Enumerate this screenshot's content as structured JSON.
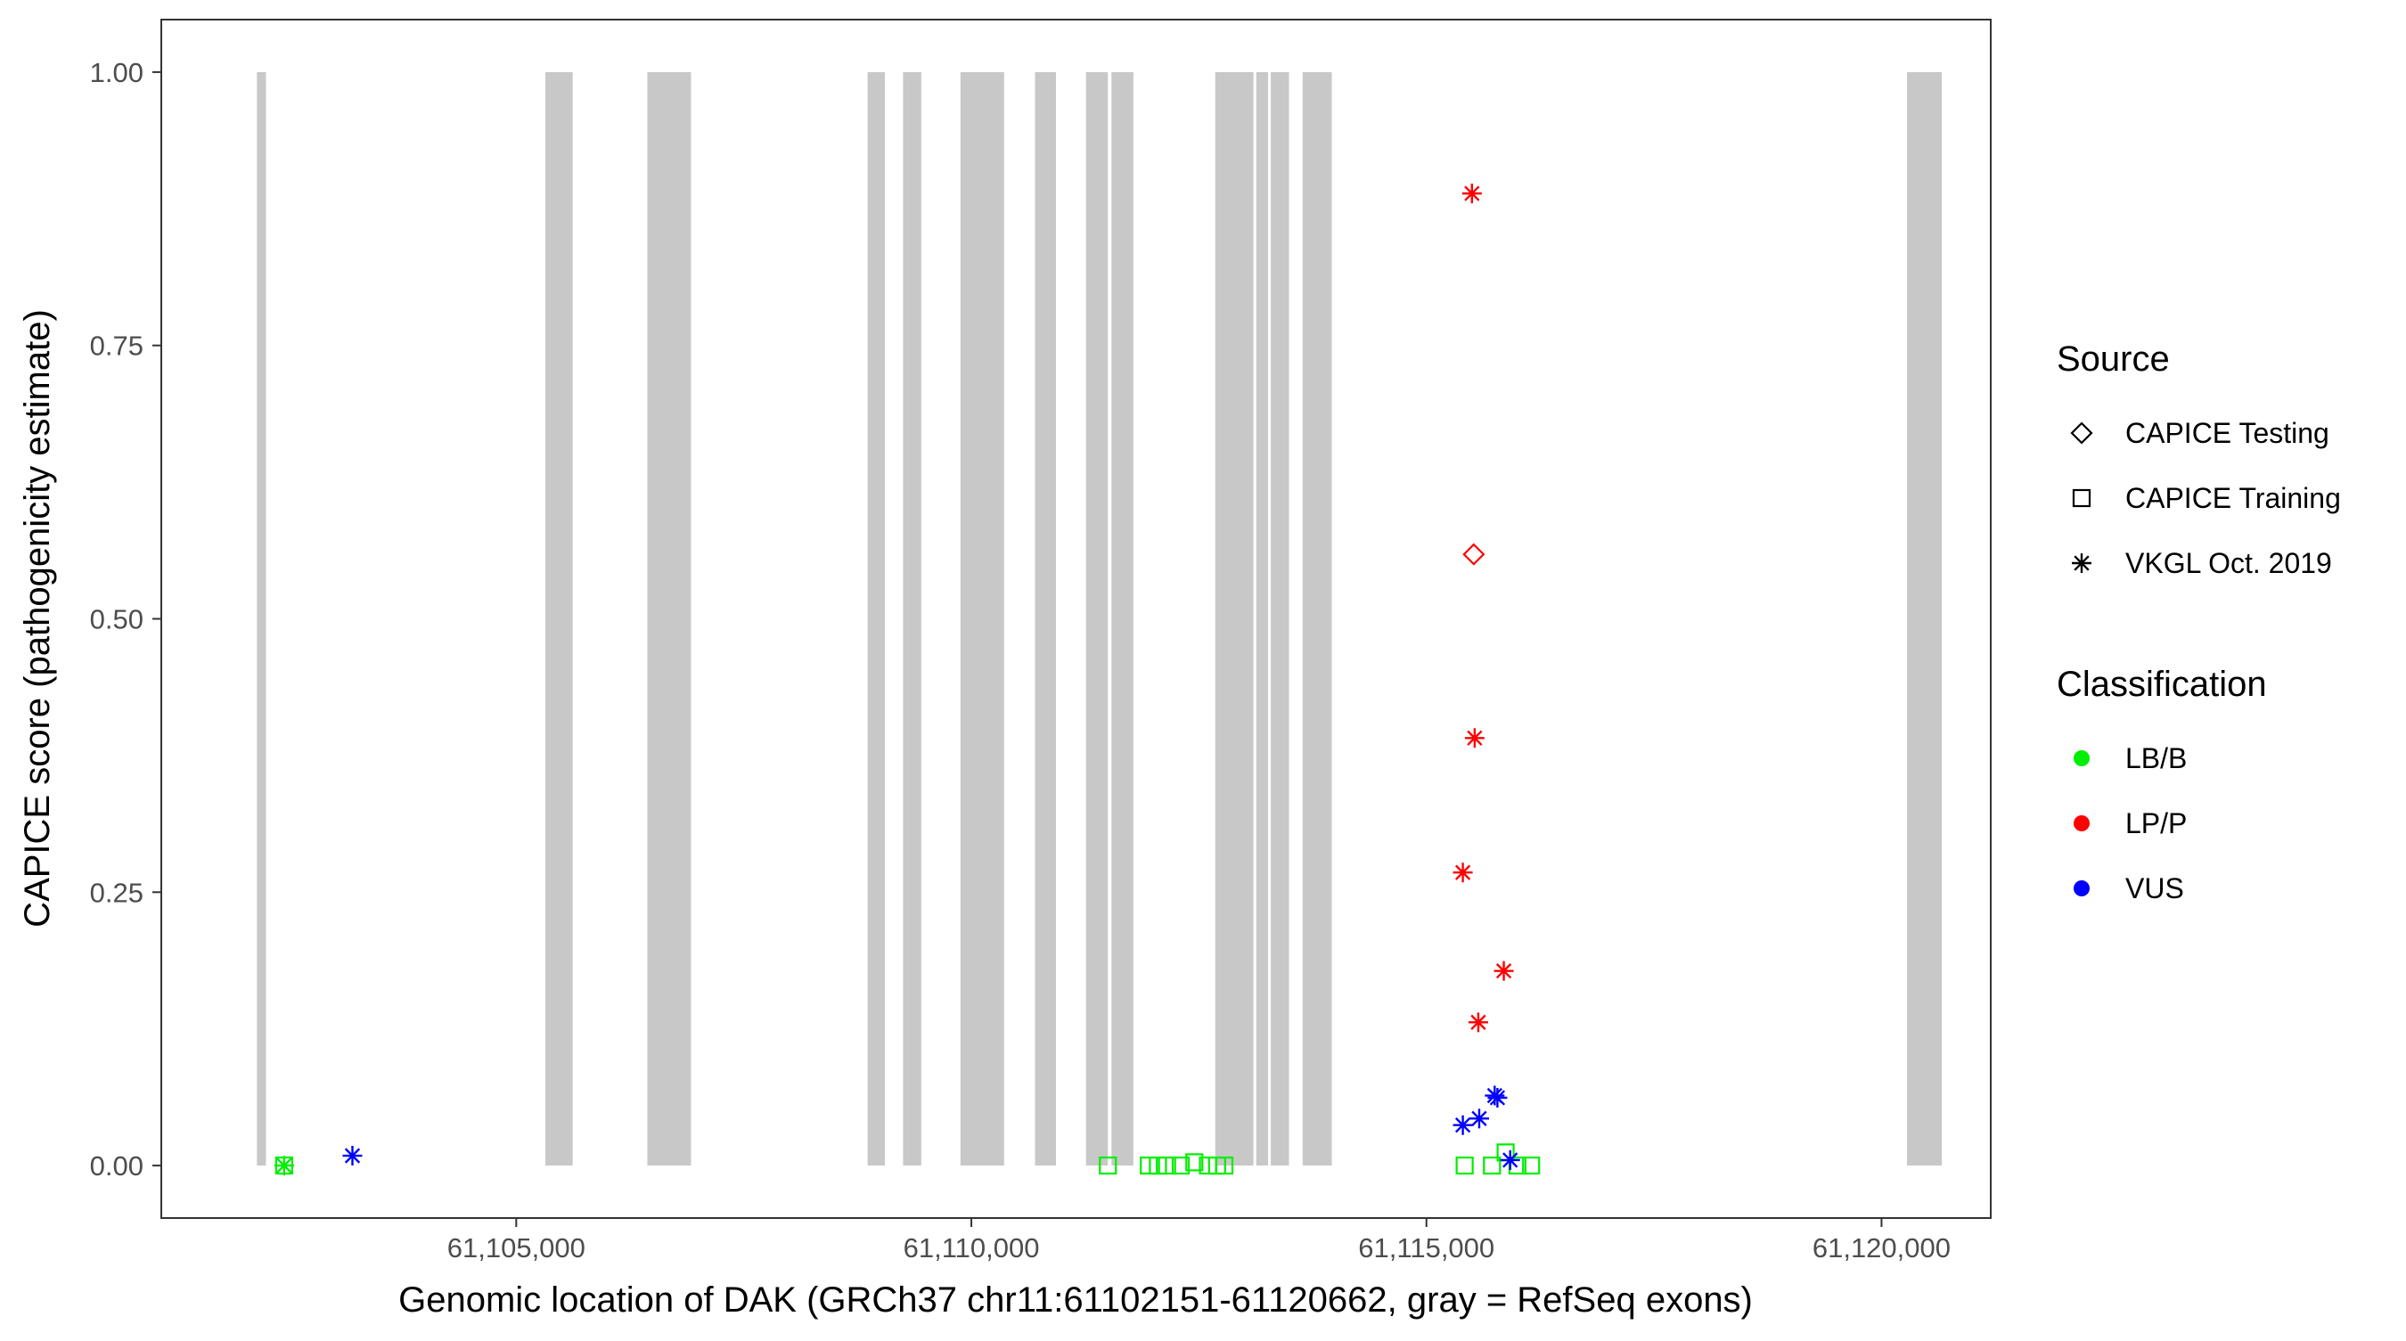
{
  "chart_data": {
    "type": "scatter",
    "title": "",
    "xlabel": "Genomic location of DAK (GRCh37 chr11:61102151-61120662, gray = RefSeq exons)",
    "ylabel": "CAPICE score (pathogenicity estimate)",
    "xlim": [
      61101100,
      61121200
    ],
    "ylim": [
      -0.048,
      1.048
    ],
    "x_ticks": [
      61105000,
      61110000,
      61115000,
      61120000
    ],
    "x_tick_labels": [
      "61,105,000",
      "61,110,000",
      "61,115,000",
      "61,120,000"
    ],
    "y_ticks": [
      0,
      0.25,
      0.5,
      0.75,
      1
    ],
    "y_tick_labels": [
      "0.00",
      "0.25",
      "0.50",
      "0.75",
      "1.00"
    ],
    "grid": false,
    "exons": [
      {
        "start": 61102151,
        "end": 61102250
      },
      {
        "start": 61105320,
        "end": 61105620
      },
      {
        "start": 61106440,
        "end": 61106920
      },
      {
        "start": 61108860,
        "end": 61109050
      },
      {
        "start": 61109250,
        "end": 61109450
      },
      {
        "start": 61109880,
        "end": 61110360
      },
      {
        "start": 61110700,
        "end": 61110930
      },
      {
        "start": 61111260,
        "end": 61111500
      },
      {
        "start": 61111540,
        "end": 61111780
      },
      {
        "start": 61112680,
        "end": 61113100
      },
      {
        "start": 61113130,
        "end": 61113260
      },
      {
        "start": 61113290,
        "end": 61113490
      },
      {
        "start": 61113640,
        "end": 61113960
      },
      {
        "start": 61120280,
        "end": 61120662
      }
    ],
    "legends": {
      "source": {
        "title": "Source",
        "items": [
          {
            "label": "CAPICE Testing",
            "shape": "diamond"
          },
          {
            "label": "CAPICE Training",
            "shape": "square"
          },
          {
            "label": "VKGL Oct. 2019",
            "shape": "asterisk"
          }
        ]
      },
      "classification": {
        "title": "Classification",
        "items": [
          {
            "label": "LB/B",
            "color": "#00ee00"
          },
          {
            "label": "LP/P",
            "color": "#ff0000"
          },
          {
            "label": "VUS",
            "color": "#0000ff"
          }
        ]
      }
    },
    "points": [
      {
        "x": 61102450,
        "y": 0.0,
        "source": "CAPICE Training",
        "classification": "LB/B"
      },
      {
        "x": 61102450,
        "y": 0.0,
        "source": "VKGL Oct. 2019",
        "classification": "LB/B"
      },
      {
        "x": 61103200,
        "y": 0.009,
        "source": "VKGL Oct. 2019",
        "classification": "VUS"
      },
      {
        "x": 61111500,
        "y": 0.0,
        "source": "CAPICE Training",
        "classification": "LB/B"
      },
      {
        "x": 61111950,
        "y": 0.0,
        "source": "CAPICE Training",
        "classification": "LB/B"
      },
      {
        "x": 61112050,
        "y": 0.0,
        "source": "CAPICE Training",
        "classification": "LB/B"
      },
      {
        "x": 61112150,
        "y": 0.0,
        "source": "CAPICE Training",
        "classification": "LB/B"
      },
      {
        "x": 61112300,
        "y": 0.0,
        "source": "CAPICE Training",
        "classification": "LB/B"
      },
      {
        "x": 61112450,
        "y": 0.003,
        "source": "CAPICE Training",
        "classification": "LB/B"
      },
      {
        "x": 61112600,
        "y": 0.0,
        "source": "CAPICE Training",
        "classification": "LB/B"
      },
      {
        "x": 61112700,
        "y": 0.0,
        "source": "CAPICE Training",
        "classification": "LB/B"
      },
      {
        "x": 61112780,
        "y": 0.0,
        "source": "CAPICE Training",
        "classification": "LB/B"
      },
      {
        "x": 61115500,
        "y": 0.889,
        "source": "VKGL Oct. 2019",
        "classification": "LP/P"
      },
      {
        "x": 61115520,
        "y": 0.559,
        "source": "CAPICE Testing",
        "classification": "LP/P"
      },
      {
        "x": 61115530,
        "y": 0.391,
        "source": "VKGL Oct. 2019",
        "classification": "LP/P"
      },
      {
        "x": 61115400,
        "y": 0.268,
        "source": "VKGL Oct. 2019",
        "classification": "LP/P"
      },
      {
        "x": 61115850,
        "y": 0.178,
        "source": "VKGL Oct. 2019",
        "classification": "LP/P"
      },
      {
        "x": 61115570,
        "y": 0.131,
        "source": "VKGL Oct. 2019",
        "classification": "LP/P"
      },
      {
        "x": 61115750,
        "y": 0.064,
        "source": "VKGL Oct. 2019",
        "classification": "VUS"
      },
      {
        "x": 61115780,
        "y": 0.062,
        "source": "VKGL Oct. 2019",
        "classification": "VUS"
      },
      {
        "x": 61115580,
        "y": 0.043,
        "source": "VKGL Oct. 2019",
        "classification": "VUS"
      },
      {
        "x": 61115400,
        "y": 0.037,
        "source": "VKGL Oct. 2019",
        "classification": "VUS"
      },
      {
        "x": 61115420,
        "y": 0.0,
        "source": "CAPICE Training",
        "classification": "LB/B"
      },
      {
        "x": 61115720,
        "y": 0.0,
        "source": "CAPICE Training",
        "classification": "LB/B"
      },
      {
        "x": 61115870,
        "y": 0.012,
        "source": "CAPICE Training",
        "classification": "LB/B"
      },
      {
        "x": 61116000,
        "y": 0.0,
        "source": "CAPICE Training",
        "classification": "LB/B"
      },
      {
        "x": 61116150,
        "y": 0.0,
        "source": "CAPICE Training",
        "classification": "LB/B"
      },
      {
        "x": 61115920,
        "y": 0.005,
        "source": "VKGL Oct. 2019",
        "classification": "VUS"
      }
    ]
  }
}
